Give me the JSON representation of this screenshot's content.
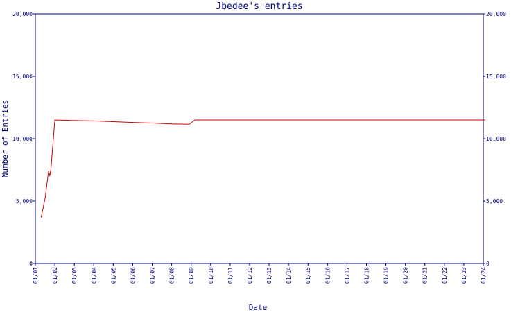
{
  "chart_data": {
    "type": "line",
    "title": "Jbedee's entries",
    "xlabel": "Date",
    "ylabel": "Number of Entries",
    "ylim": [
      0,
      20000
    ],
    "yticks": [
      0,
      5000,
      10000,
      15000,
      20000
    ],
    "ytick_labels": [
      "0",
      "5,000",
      "10,000",
      "15,000",
      "20,000"
    ],
    "xlim": [
      "01/01",
      "01/24"
    ],
    "xtick_labels": [
      "01/01",
      "01/02",
      "01/03",
      "01/04",
      "01/05",
      "01/06",
      "01/07",
      "01/08",
      "01/09",
      "01/10",
      "01/11",
      "01/12",
      "01/13",
      "01/14",
      "01/15",
      "01/16",
      "01/17",
      "01/18",
      "01/19",
      "01/20",
      "01/21",
      "01/22",
      "01/23",
      "01/24"
    ],
    "grid": false,
    "line_color": "#cc0000",
    "axis_color": "#000080",
    "series": [
      {
        "points": [
          {
            "x": 0.3,
            "y": 3700
          },
          {
            "x": 0.5,
            "y": 5200
          },
          {
            "x": 0.68,
            "y": 7400
          },
          {
            "x": 0.74,
            "y": 7000
          },
          {
            "x": 0.8,
            "y": 7600
          },
          {
            "x": 1.0,
            "y": 11500
          },
          {
            "x": 2,
            "y": 11450
          },
          {
            "x": 3,
            "y": 11420
          },
          {
            "x": 4,
            "y": 11360
          },
          {
            "x": 5,
            "y": 11300
          },
          {
            "x": 6,
            "y": 11250
          },
          {
            "x": 7,
            "y": 11180
          },
          {
            "x": 7.9,
            "y": 11150
          },
          {
            "x": 8.2,
            "y": 11500
          },
          {
            "x": 9,
            "y": 11500
          },
          {
            "x": 12,
            "y": 11500
          },
          {
            "x": 15,
            "y": 11500
          },
          {
            "x": 18,
            "y": 11500
          },
          {
            "x": 21,
            "y": 11500
          },
          {
            "x": 23.1,
            "y": 11500
          }
        ]
      }
    ]
  }
}
